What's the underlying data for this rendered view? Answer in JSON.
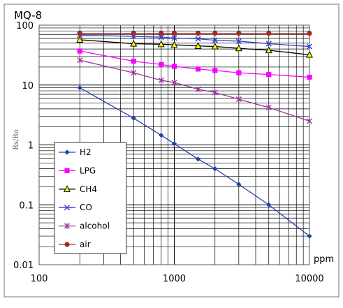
{
  "chart_data": {
    "type": "line",
    "title": "MQ-8",
    "ylabel": "Rs/Ro",
    "xunit": "ppm",
    "xscale": "log",
    "yscale": "log",
    "xlim": [
      100,
      10000
    ],
    "ylim": [
      0.01,
      100
    ],
    "grid": true,
    "legend_position": "left",
    "x_tick_labels": [
      "100",
      "1000",
      "10000"
    ],
    "y_tick_labels": [
      "100",
      "10",
      "1",
      "0.1",
      "0.01"
    ],
    "series": [
      {
        "name": "H2",
        "color": "#1f3fae",
        "marker": "diamond",
        "x": [
          200,
          500,
          800,
          1000,
          1500,
          2000,
          3000,
          5000,
          10000
        ],
        "y": [
          9,
          2.8,
          1.45,
          1.05,
          0.58,
          0.4,
          0.22,
          0.1,
          0.03
        ]
      },
      {
        "name": "LPG",
        "color": "#ff00ff",
        "marker": "square",
        "x": [
          200,
          500,
          800,
          1000,
          1500,
          2000,
          3000,
          5000,
          10000
        ],
        "y": [
          37,
          25,
          22,
          20.5,
          18.5,
          17.5,
          16,
          15,
          13.5
        ]
      },
      {
        "name": "CH4",
        "color": "#000000",
        "marker": "triangle",
        "x": [
          200,
          500,
          800,
          1000,
          1500,
          2000,
          3000,
          5000,
          10000
        ],
        "y": [
          57,
          49,
          48,
          47,
          45,
          44,
          41,
          38,
          32
        ]
      },
      {
        "name": "CO",
        "color": "#3f3fcf",
        "marker": "x",
        "x": [
          200,
          500,
          800,
          1000,
          1500,
          2000,
          3000,
          5000,
          10000
        ],
        "y": [
          68,
          65,
          63,
          61,
          59,
          56,
          54,
          49,
          44
        ]
      },
      {
        "name": "alcohol",
        "color": "#993399",
        "marker": "star",
        "x": [
          200,
          500,
          800,
          1000,
          1500,
          2000,
          3000,
          5000,
          10000
        ],
        "y": [
          26,
          16,
          12,
          11,
          8.5,
          7.5,
          5.8,
          4.2,
          2.5
        ]
      },
      {
        "name": "air",
        "color": "#a52a2a",
        "marker": "circle",
        "x": [
          200,
          500,
          800,
          1000,
          1500,
          2000,
          3000,
          5000,
          10000
        ],
        "y": [
          73,
          73,
          73,
          73,
          73,
          73,
          73,
          73,
          73
        ]
      }
    ]
  }
}
